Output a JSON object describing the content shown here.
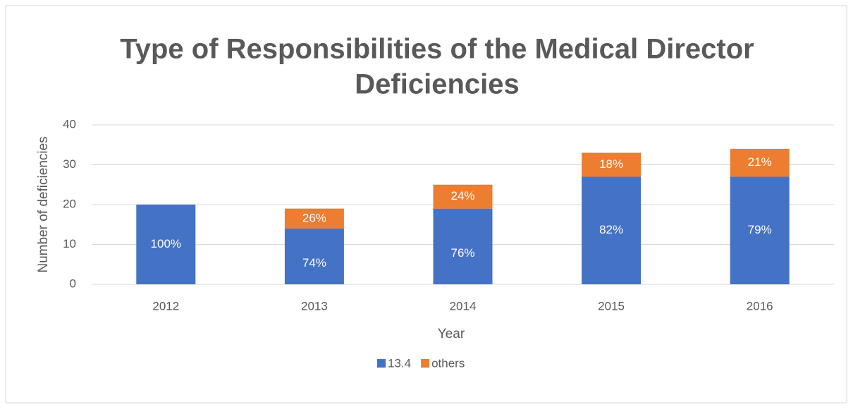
{
  "chart_data": {
    "type": "stacked_bar",
    "title": [
      "Type of Responsibilities of the Medical Director",
      "Deficiencies"
    ],
    "x_label": "Year",
    "y_label": "Number of  deficiencies",
    "categories": [
      "2012",
      "2013",
      "2014",
      "2015",
      "2016"
    ],
    "series": [
      {
        "name": "13.4",
        "color": "#4472c4",
        "values": [
          20,
          14,
          19,
          27,
          27
        ],
        "share_labels": [
          "100%",
          "74%",
          "76%",
          "82%",
          "79%"
        ]
      },
      {
        "name": "others",
        "color": "#ed7d31",
        "values": [
          0,
          5,
          6,
          6,
          7
        ],
        "share_labels": [
          null,
          "26%",
          "24%",
          "18%",
          "21%"
        ]
      }
    ],
    "ylim": [
      0,
      40
    ],
    "yticks": [
      0,
      10,
      20,
      30,
      40
    ],
    "grid": true,
    "legend": "bottom"
  }
}
